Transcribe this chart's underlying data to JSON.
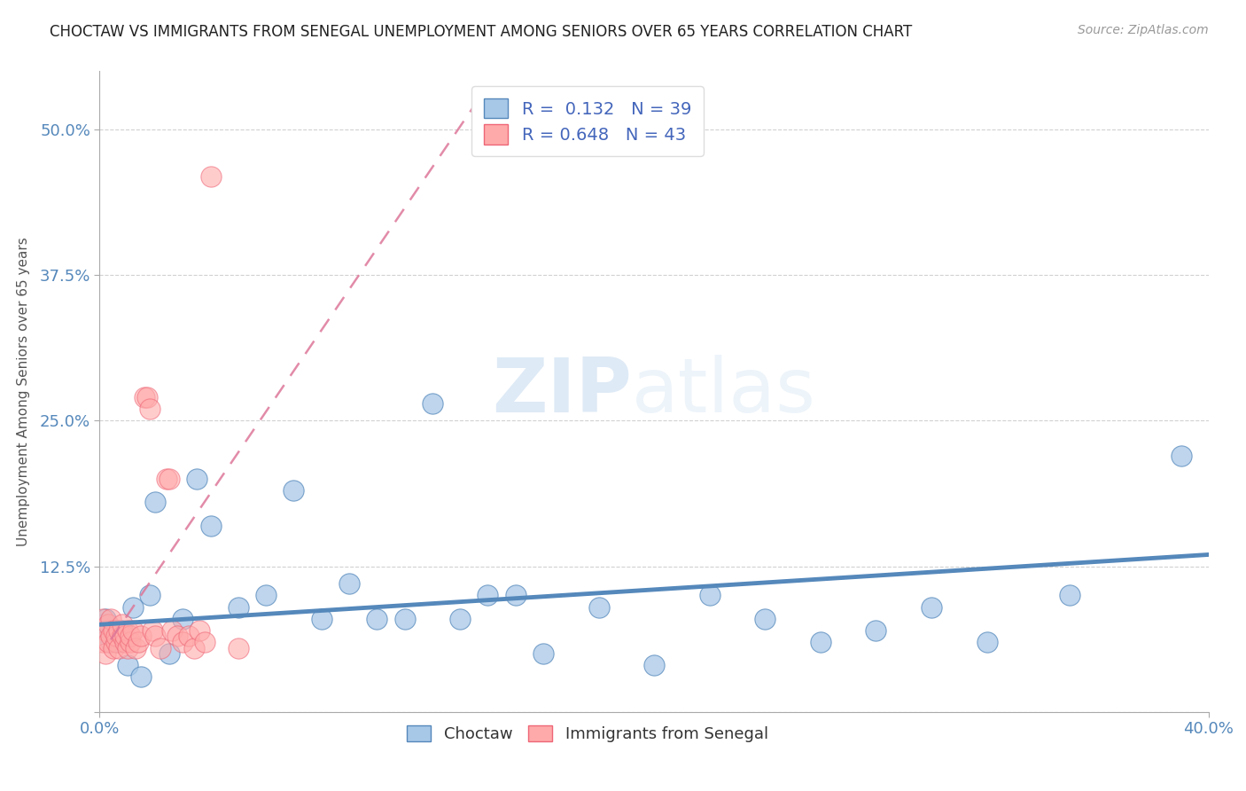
{
  "title": "CHOCTAW VS IMMIGRANTS FROM SENEGAL UNEMPLOYMENT AMONG SENIORS OVER 65 YEARS CORRELATION CHART",
  "source": "Source: ZipAtlas.com",
  "ylabel": "Unemployment Among Seniors over 65 years",
  "xlim": [
    0.0,
    0.4
  ],
  "ylim": [
    0.0,
    0.55
  ],
  "xtick_labels": [
    "0.0%",
    "40.0%"
  ],
  "xtick_vals": [
    0.0,
    0.4
  ],
  "ytick_vals": [
    0.0,
    0.125,
    0.25,
    0.375,
    0.5
  ],
  "ytick_labels": [
    "",
    "12.5%",
    "25.0%",
    "37.5%",
    "50.0%"
  ],
  "choctaw_R": 0.132,
  "choctaw_N": 39,
  "senegal_R": 0.648,
  "senegal_N": 43,
  "choctaw_face": "#a8c8e8",
  "choctaw_edge": "#5588bb",
  "senegal_face": "#ffaaaa",
  "senegal_edge": "#ee6677",
  "choctaw_line_color": "#5588bb",
  "senegal_line_color": "#dd7799",
  "legend_label_choctaw": "Choctaw",
  "legend_label_senegal": "Immigrants from Senegal",
  "watermark_zip": "ZIP",
  "watermark_atlas": "atlas",
  "tick_label_color": "#5588bb",
  "choctaw_x": [
    0.001,
    0.002,
    0.003,
    0.004,
    0.005,
    0.006,
    0.007,
    0.008,
    0.01,
    0.012,
    0.015,
    0.018,
    0.02,
    0.025,
    0.03,
    0.035,
    0.04,
    0.05,
    0.06,
    0.07,
    0.08,
    0.09,
    0.1,
    0.11,
    0.12,
    0.13,
    0.14,
    0.15,
    0.16,
    0.18,
    0.2,
    0.22,
    0.24,
    0.26,
    0.28,
    0.3,
    0.32,
    0.35,
    0.39
  ],
  "choctaw_y": [
    0.075,
    0.08,
    0.07,
    0.06,
    0.065,
    0.07,
    0.06,
    0.07,
    0.04,
    0.09,
    0.03,
    0.1,
    0.18,
    0.05,
    0.08,
    0.2,
    0.16,
    0.09,
    0.1,
    0.19,
    0.08,
    0.11,
    0.08,
    0.08,
    0.265,
    0.08,
    0.1,
    0.1,
    0.05,
    0.09,
    0.04,
    0.1,
    0.08,
    0.06,
    0.07,
    0.09,
    0.06,
    0.1,
    0.22
  ],
  "senegal_x": [
    0.001,
    0.001,
    0.002,
    0.002,
    0.003,
    0.003,
    0.004,
    0.004,
    0.005,
    0.005,
    0.006,
    0.006,
    0.007,
    0.007,
    0.008,
    0.008,
    0.009,
    0.009,
    0.01,
    0.01,
    0.011,
    0.011,
    0.012,
    0.013,
    0.014,
    0.015,
    0.016,
    0.017,
    0.018,
    0.019,
    0.02,
    0.022,
    0.024,
    0.025,
    0.026,
    0.028,
    0.03,
    0.032,
    0.034,
    0.036,
    0.038,
    0.04,
    0.05
  ],
  "senegal_y": [
    0.06,
    0.08,
    0.05,
    0.07,
    0.06,
    0.075,
    0.065,
    0.08,
    0.055,
    0.07,
    0.06,
    0.065,
    0.07,
    0.055,
    0.065,
    0.075,
    0.06,
    0.065,
    0.055,
    0.07,
    0.06,
    0.065,
    0.07,
    0.055,
    0.06,
    0.065,
    0.27,
    0.27,
    0.26,
    0.07,
    0.065,
    0.055,
    0.2,
    0.2,
    0.07,
    0.065,
    0.06,
    0.065,
    0.055,
    0.07,
    0.06,
    0.46,
    0.055
  ]
}
